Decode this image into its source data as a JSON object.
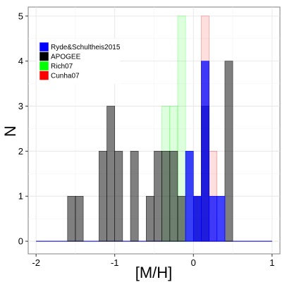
{
  "chart_data": {
    "type": "histogram",
    "title": "",
    "xlabel": "[M/H]",
    "ylabel": "N",
    "xlim": [
      -2.1,
      1.1
    ],
    "ylim": [
      -0.28,
      5.2
    ],
    "xticks": [
      -2,
      -1,
      0,
      1
    ],
    "xtick_labels": [
      "-2",
      "-1",
      "0",
      "1"
    ],
    "yticks": [
      0,
      1,
      2,
      3,
      4,
      5
    ],
    "ytick_labels": [
      "0",
      "1",
      "2",
      "3",
      "4",
      "5"
    ],
    "grid": true,
    "legend_position": "top-left",
    "bin_width": 0.1,
    "series": [
      {
        "name": "Ryde&Schultheis2015",
        "color": "#0000ff",
        "opacity": 0.75,
        "bins": [
          {
            "x0": -0.1,
            "x1": 0.0,
            "count": 2
          },
          {
            "x0": 0.0,
            "x1": 0.1,
            "count": 1
          },
          {
            "x0": 0.1,
            "x1": 0.2,
            "count": 4
          },
          {
            "x0": 0.2,
            "x1": 0.3,
            "count": 1
          },
          {
            "x0": 0.3,
            "x1": 0.4,
            "count": 1
          }
        ]
      },
      {
        "name": "APOGEE",
        "color": "#000000",
        "opacity": 0.5,
        "bins": [
          {
            "x0": -1.6,
            "x1": -1.5,
            "count": 1
          },
          {
            "x0": -1.5,
            "x1": -1.4,
            "count": 1
          },
          {
            "x0": -1.2,
            "x1": -1.1,
            "count": 2
          },
          {
            "x0": -1.1,
            "x1": -1.0,
            "count": 3
          },
          {
            "x0": -1.0,
            "x1": -0.9,
            "count": 2
          },
          {
            "x0": -0.8,
            "x1": -0.7,
            "count": 2
          },
          {
            "x0": -0.6,
            "x1": -0.5,
            "count": 1
          },
          {
            "x0": -0.5,
            "x1": -0.4,
            "count": 2
          },
          {
            "x0": -0.4,
            "x1": -0.3,
            "count": 2
          },
          {
            "x0": -0.3,
            "x1": -0.2,
            "count": 2
          },
          {
            "x0": -0.2,
            "x1": -0.1,
            "count": 1
          },
          {
            "x0": 0.0,
            "x1": 0.1,
            "count": 1
          },
          {
            "x0": 0.1,
            "x1": 0.2,
            "count": 3
          },
          {
            "x0": 0.4,
            "x1": 0.5,
            "count": 4
          }
        ]
      },
      {
        "name": "Rich07",
        "color": "#00ff00",
        "opacity": 0.13,
        "bins": [
          {
            "x0": -0.4,
            "x1": -0.3,
            "count": 3
          },
          {
            "x0": -0.3,
            "x1": -0.2,
            "count": 3
          },
          {
            "x0": -0.2,
            "x1": -0.1,
            "count": 5
          },
          {
            "x0": -0.1,
            "x1": 0.0,
            "count": 2
          }
        ]
      },
      {
        "name": "Cunha07",
        "color": "#ff0000",
        "opacity": 0.13,
        "bins": [
          {
            "x0": 0.1,
            "x1": 0.2,
            "count": 5
          },
          {
            "x0": 0.2,
            "x1": 0.3,
            "count": 2
          }
        ]
      }
    ]
  }
}
